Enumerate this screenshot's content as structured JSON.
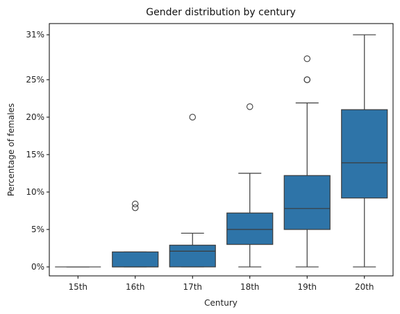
{
  "chart_data": {
    "type": "box",
    "title": "Gender distribution by century",
    "xlabel": "Century",
    "ylabel": "Percentage of females",
    "ylim": [
      -0.012,
      0.325
    ],
    "y_ticks": [
      0,
      0.05,
      0.1,
      0.15,
      0.2,
      0.25,
      0.31
    ],
    "y_tick_labels": [
      "0%",
      "5%",
      "10%",
      "15%",
      "20%",
      "25%",
      "31%"
    ],
    "grid": false,
    "box_color": "#2e74a8",
    "categories": [
      "15th",
      "16th",
      "17th",
      "18th",
      "19th",
      "20th"
    ],
    "boxes": [
      {
        "category": "15th",
        "whisker_low": 0.0,
        "q1": 0.0,
        "median": 0.0,
        "q3": 0.0,
        "whisker_high": 0.0,
        "outliers": []
      },
      {
        "category": "16th",
        "whisker_low": 0.0,
        "q1": 0.0,
        "median": 0.0,
        "q3": 0.02,
        "whisker_high": 0.02,
        "outliers": [
          0.079,
          0.084
        ]
      },
      {
        "category": "17th",
        "whisker_low": 0.0,
        "q1": 0.0,
        "median": 0.021,
        "q3": 0.029,
        "whisker_high": 0.045,
        "outliers": [
          0.2
        ]
      },
      {
        "category": "18th",
        "whisker_low": 0.0,
        "q1": 0.03,
        "median": 0.05,
        "q3": 0.072,
        "whisker_high": 0.125,
        "outliers": [
          0.214
        ]
      },
      {
        "category": "19th",
        "whisker_low": 0.0,
        "q1": 0.05,
        "median": 0.078,
        "q3": 0.122,
        "whisker_high": 0.219,
        "outliers": [
          0.25,
          0.25,
          0.278
        ]
      },
      {
        "category": "20th",
        "whisker_low": 0.0,
        "q1": 0.092,
        "median": 0.139,
        "q3": 0.21,
        "whisker_high": 0.31,
        "outliers": []
      }
    ]
  }
}
